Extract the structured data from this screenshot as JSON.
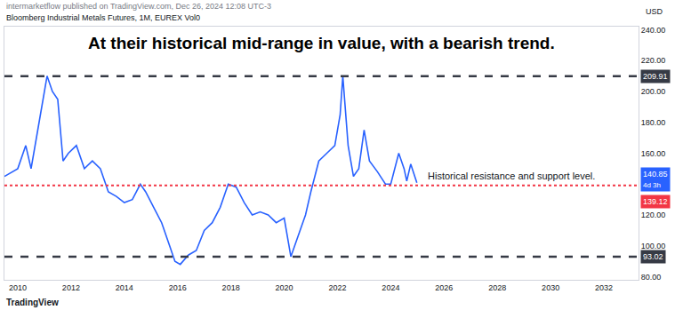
{
  "chart_data": {
    "type": "line",
    "header": "intermarketflow published on TradingView.com, Dec 26, 2024 12:08 UTC-3",
    "subtitle": "Bloomberg Industrial Metals Futures, 1M, EUREX Vol0",
    "title": "At their historical mid-range in value, with a bearish trend.",
    "unit": "USD",
    "logo": "TradingView",
    "x": [
      2009.5,
      2010.0,
      2010.3,
      2010.5,
      2010.8,
      2011.1,
      2011.3,
      2011.5,
      2011.7,
      2011.9,
      2012.2,
      2012.5,
      2012.8,
      2013.1,
      2013.4,
      2013.7,
      2014.0,
      2014.3,
      2014.6,
      2014.8,
      2015.1,
      2015.4,
      2015.7,
      2015.9,
      2016.1,
      2016.4,
      2016.7,
      2017.0,
      2017.3,
      2017.6,
      2017.9,
      2018.2,
      2018.5,
      2018.8,
      2019.1,
      2019.4,
      2019.7,
      2020.0,
      2020.25,
      2020.5,
      2020.8,
      2021.0,
      2021.3,
      2021.6,
      2021.9,
      2022.1,
      2022.2,
      2022.4,
      2022.6,
      2022.8,
      2023.0,
      2023.2,
      2023.5,
      2023.8,
      2024.0,
      2024.3,
      2024.5,
      2024.6,
      2024.75,
      2024.9,
      2024.98
    ],
    "values": [
      145,
      150,
      165,
      150,
      180,
      210,
      200,
      195,
      155,
      160,
      165,
      150,
      155,
      150,
      135,
      132,
      128,
      130,
      140,
      135,
      125,
      115,
      100,
      90,
      88,
      94,
      97,
      110,
      115,
      125,
      140,
      138,
      128,
      120,
      122,
      120,
      115,
      118,
      93,
      105,
      120,
      135,
      155,
      160,
      165,
      185,
      210,
      165,
      145,
      150,
      175,
      155,
      148,
      140,
      140,
      160,
      150,
      142,
      153,
      145,
      140.85
    ],
    "color": "#2962ff",
    "line_style": "solid",
    "last_value": {
      "value": 140.85,
      "color": "#2962ff",
      "countdown": "4d 3h"
    },
    "reference_lines": [
      {
        "value": 209.91,
        "color": "#363a45",
        "line_style": "dashed"
      },
      {
        "value": 139.12,
        "color": "#f23645",
        "line_style": "dotted",
        "text": "Historical resistance and support level."
      },
      {
        "value": 93.02,
        "color": "#363a45",
        "line_style": "dashed"
      }
    ],
    "xlim": [
      2009.5,
      2033.3
    ],
    "xticks": [
      2010,
      2012,
      2014,
      2016,
      2018,
      2020,
      2022,
      2024,
      2026,
      2028,
      2030,
      2032
    ],
    "ylim": [
      78,
      242
    ],
    "yticks": [
      {
        "value": 80,
        "label": "80.00"
      },
      {
        "value": 100,
        "label": "100.00"
      },
      {
        "value": 120,
        "label": "120.00"
      },
      {
        "value": 160,
        "label": "160.00"
      },
      {
        "value": 180,
        "label": "180.00"
      },
      {
        "value": 200,
        "label": "200.00"
      },
      {
        "value": 220,
        "label": "220.00"
      },
      {
        "value": 240,
        "label": "240.00"
      }
    ],
    "grid": false
  }
}
